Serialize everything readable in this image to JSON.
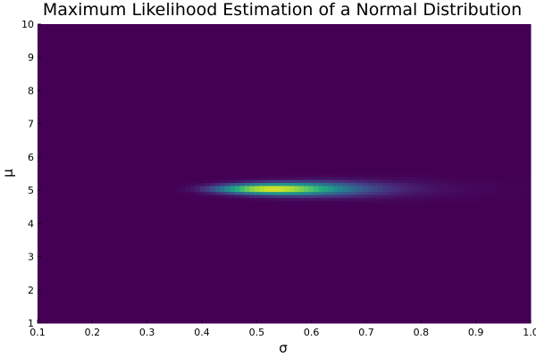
{
  "chart_data": {
    "type": "heatmap",
    "title": "Maximum Likelihood Estimation of a Normal Distribution",
    "xlabel": "σ",
    "ylabel": "μ",
    "xlim": [
      0.1,
      1.0
    ],
    "ylim": [
      1,
      10
    ],
    "x_ticks": [
      "0.1",
      "0.2",
      "0.3",
      "0.4",
      "0.5",
      "0.6",
      "0.7",
      "0.8",
      "0.9",
      "1.0"
    ],
    "y_ticks": [
      "1",
      "2",
      "3",
      "4",
      "5",
      "6",
      "7",
      "8",
      "9",
      "10"
    ],
    "colormap": "viridis",
    "grid": false,
    "peak": {
      "sigma": 0.53,
      "mu": 5.05
    },
    "z": "likelihood"
  }
}
